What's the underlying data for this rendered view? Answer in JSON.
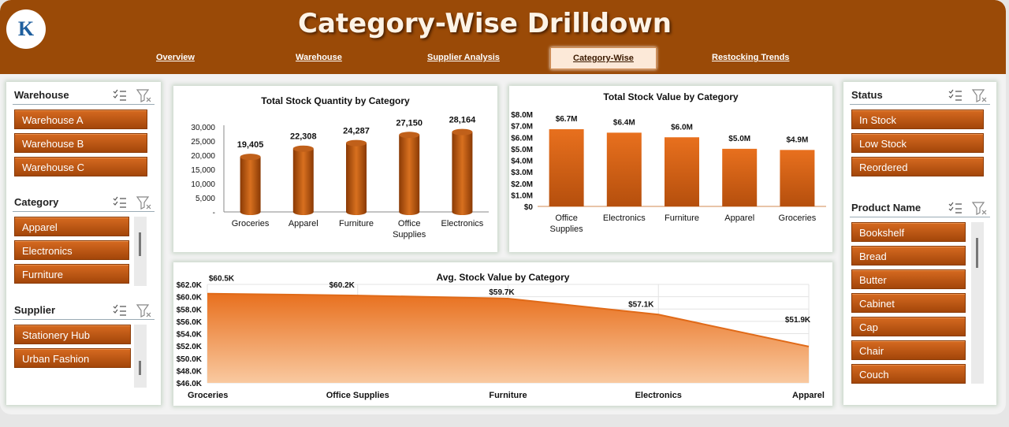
{
  "header": {
    "title": "Category-Wise Drilldown",
    "logo_text": "K"
  },
  "nav": [
    {
      "label": "Overview",
      "active": false
    },
    {
      "label": "Warehouse",
      "active": false
    },
    {
      "label": "Supplier Analysis",
      "active": false
    },
    {
      "label": "Category-Wise",
      "active": true
    },
    {
      "label": "Restocking Trends",
      "active": false
    }
  ],
  "slicers": {
    "warehouse": {
      "title": "Warehouse",
      "items": [
        "Warehouse A",
        "Warehouse B",
        "Warehouse C"
      ]
    },
    "category": {
      "title": "Category",
      "items": [
        "Apparel",
        "Electronics",
        "Furniture"
      ]
    },
    "supplier": {
      "title": "Supplier",
      "items": [
        "Stationery Hub",
        "Urban Fashion"
      ]
    },
    "status": {
      "title": "Status",
      "items": [
        "In Stock",
        "Low Stock",
        "Reordered"
      ]
    },
    "product": {
      "title": "Product Name",
      "items": [
        "Bookshelf",
        "Bread",
        "Butter",
        "Cabinet",
        "Cap",
        "Chair",
        "Couch"
      ]
    }
  },
  "colors": {
    "brand": "#9a4a07",
    "accent": "#e8701e"
  },
  "chart_data": [
    {
      "type": "bar",
      "title": "Total Stock Quantity by Category",
      "categories": [
        "Groceries",
        "Apparel",
        "Furniture",
        "Office Supplies",
        "Electronics"
      ],
      "values": [
        19405,
        22308,
        24287,
        27150,
        28164
      ],
      "data_labels": [
        "19,405",
        "22,308",
        "24,287",
        "27,150",
        "28,164"
      ],
      "yticks": [
        "-",
        "5,000",
        "10,000",
        "15,000",
        "20,000",
        "25,000",
        "30,000"
      ],
      "ylim": [
        0,
        30000
      ]
    },
    {
      "type": "bar",
      "title": "Total Stock Value by Category",
      "categories": [
        "Office Supplies",
        "Electronics",
        "Furniture",
        "Apparel",
        "Groceries"
      ],
      "values": [
        6.7,
        6.4,
        6.0,
        5.0,
        4.9
      ],
      "data_labels": [
        "$6.7M",
        "$6.4M",
        "$6.0M",
        "$5.0M",
        "$4.9M"
      ],
      "yticks": [
        "$0",
        "$1.0M",
        "$2.0M",
        "$3.0M",
        "$4.0M",
        "$5.0M",
        "$6.0M",
        "$7.0M",
        "$8.0M"
      ],
      "ylim": [
        0,
        8
      ]
    },
    {
      "type": "area",
      "title": "Avg.  Stock Value by Category",
      "categories": [
        "Groceries",
        "Office Supplies",
        "Furniture",
        "Electronics",
        "Apparel"
      ],
      "values": [
        60.5,
        60.2,
        59.7,
        57.1,
        51.9
      ],
      "data_labels": [
        "$60.5K",
        "$60.2K",
        "$59.7K",
        "$57.1K",
        "$51.9K"
      ],
      "yticks": [
        "$46.0K",
        "$48.0K",
        "$50.0K",
        "$52.0K",
        "$54.0K",
        "$56.0K",
        "$58.0K",
        "$60.0K",
        "$62.0K"
      ],
      "ylim": [
        46,
        62
      ]
    }
  ]
}
